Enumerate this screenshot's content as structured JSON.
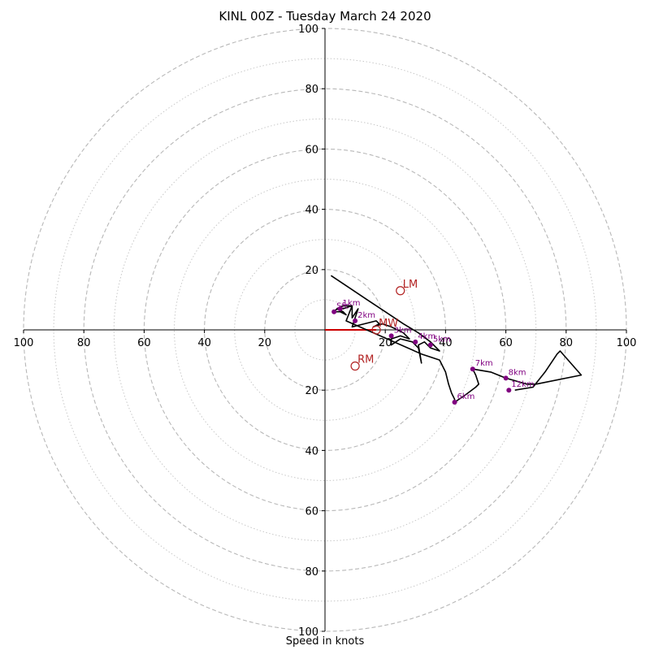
{
  "chart_data": {
    "type": "hodograph",
    "title": "KINL 00Z - Tuesday March 24 2020",
    "xlabel": "Speed in knots",
    "ylabel": "",
    "xlim": [
      -100,
      100
    ],
    "ylim": [
      -100,
      100
    ],
    "rings": {
      "major": [
        20,
        40,
        60,
        80,
        100
      ],
      "minor": [
        10,
        30,
        50,
        70,
        90
      ]
    },
    "ticks": {
      "x_left": [
        100,
        80,
        60,
        40,
        20
      ],
      "x_right": [
        20,
        40,
        60,
        80,
        100
      ],
      "y_top": [
        100,
        80,
        60,
        40,
        20
      ],
      "y_bottom": [
        20,
        40,
        60,
        80,
        100
      ]
    },
    "trace_color": "#000000",
    "trace": [
      [
        2,
        18
      ],
      [
        8,
        14
      ],
      [
        14,
        10
      ],
      [
        20,
        6
      ],
      [
        26,
        2
      ],
      [
        31,
        -1
      ],
      [
        35,
        -4
      ],
      [
        38,
        -7
      ],
      [
        35,
        -6
      ],
      [
        33,
        -4
      ],
      [
        31,
        -5
      ],
      [
        32,
        -11
      ],
      [
        31,
        -6
      ],
      [
        29,
        -4
      ],
      [
        25,
        -3
      ],
      [
        22,
        -5
      ],
      [
        22,
        -3
      ],
      [
        25,
        -2
      ],
      [
        28,
        -3
      ],
      [
        26,
        -1
      ],
      [
        22,
        1
      ],
      [
        19,
        2
      ],
      [
        16,
        1
      ],
      [
        18,
        2
      ],
      [
        17,
        3
      ],
      [
        13,
        2
      ],
      [
        9,
        1
      ],
      [
        11,
        7
      ],
      [
        9,
        4
      ],
      [
        9,
        8
      ],
      [
        6,
        7
      ],
      [
        4,
        7
      ],
      [
        6,
        6
      ],
      [
        7,
        5
      ],
      [
        5,
        6
      ],
      [
        3,
        6
      ],
      [
        4,
        7
      ],
      [
        6,
        8
      ],
      [
        9,
        8
      ],
      [
        7,
        3
      ],
      [
        32,
        -8
      ],
      [
        38,
        -10
      ],
      [
        40,
        -14
      ],
      [
        41,
        -18
      ],
      [
        42,
        -21
      ],
      [
        43,
        -23
      ],
      [
        43,
        -24
      ],
      [
        46,
        -22
      ],
      [
        50,
        -19
      ],
      [
        51,
        -18
      ],
      [
        50,
        -15
      ],
      [
        49,
        -13
      ],
      [
        55,
        -14
      ],
      [
        60,
        -16
      ],
      [
        67,
        -18
      ],
      [
        70,
        -18
      ],
      [
        85,
        -15
      ],
      [
        78,
        -7
      ],
      [
        77,
        -8
      ],
      [
        73,
        -14
      ],
      [
        69,
        -19
      ],
      [
        63,
        -20
      ]
    ],
    "height_markers": [
      {
        "label": "1km",
        "x": 5,
        "y": 7
      },
      {
        "label": "2km",
        "x": 10,
        "y": 3
      },
      {
        "label": "3km",
        "x": 22,
        "y": -2
      },
      {
        "label": "4km",
        "x": 30,
        "y": -4
      },
      {
        "label": "5km",
        "x": 35,
        "y": -5
      },
      {
        "label": "6km",
        "x": 43,
        "y": -24
      },
      {
        "label": "7km",
        "x": 49,
        "y": -13
      },
      {
        "label": "8km",
        "x": 60,
        "y": -16
      },
      {
        "label": "12km",
        "x": 61,
        "y": -20
      },
      {
        "label": "Sfc",
        "x": 3,
        "y": 6
      }
    ],
    "marker_color": "#800080",
    "motion_markers": [
      {
        "label": "LM",
        "x": 25,
        "y": 13
      },
      {
        "label": "RM",
        "x": 10,
        "y": -12
      },
      {
        "label": "MW",
        "x": 17,
        "y": 0
      }
    ],
    "motion_color": "#b22222",
    "mean_wind_vector": {
      "from": [
        0,
        0
      ],
      "to": [
        17,
        0
      ],
      "color": "#cc0000"
    },
    "grid": true
  }
}
